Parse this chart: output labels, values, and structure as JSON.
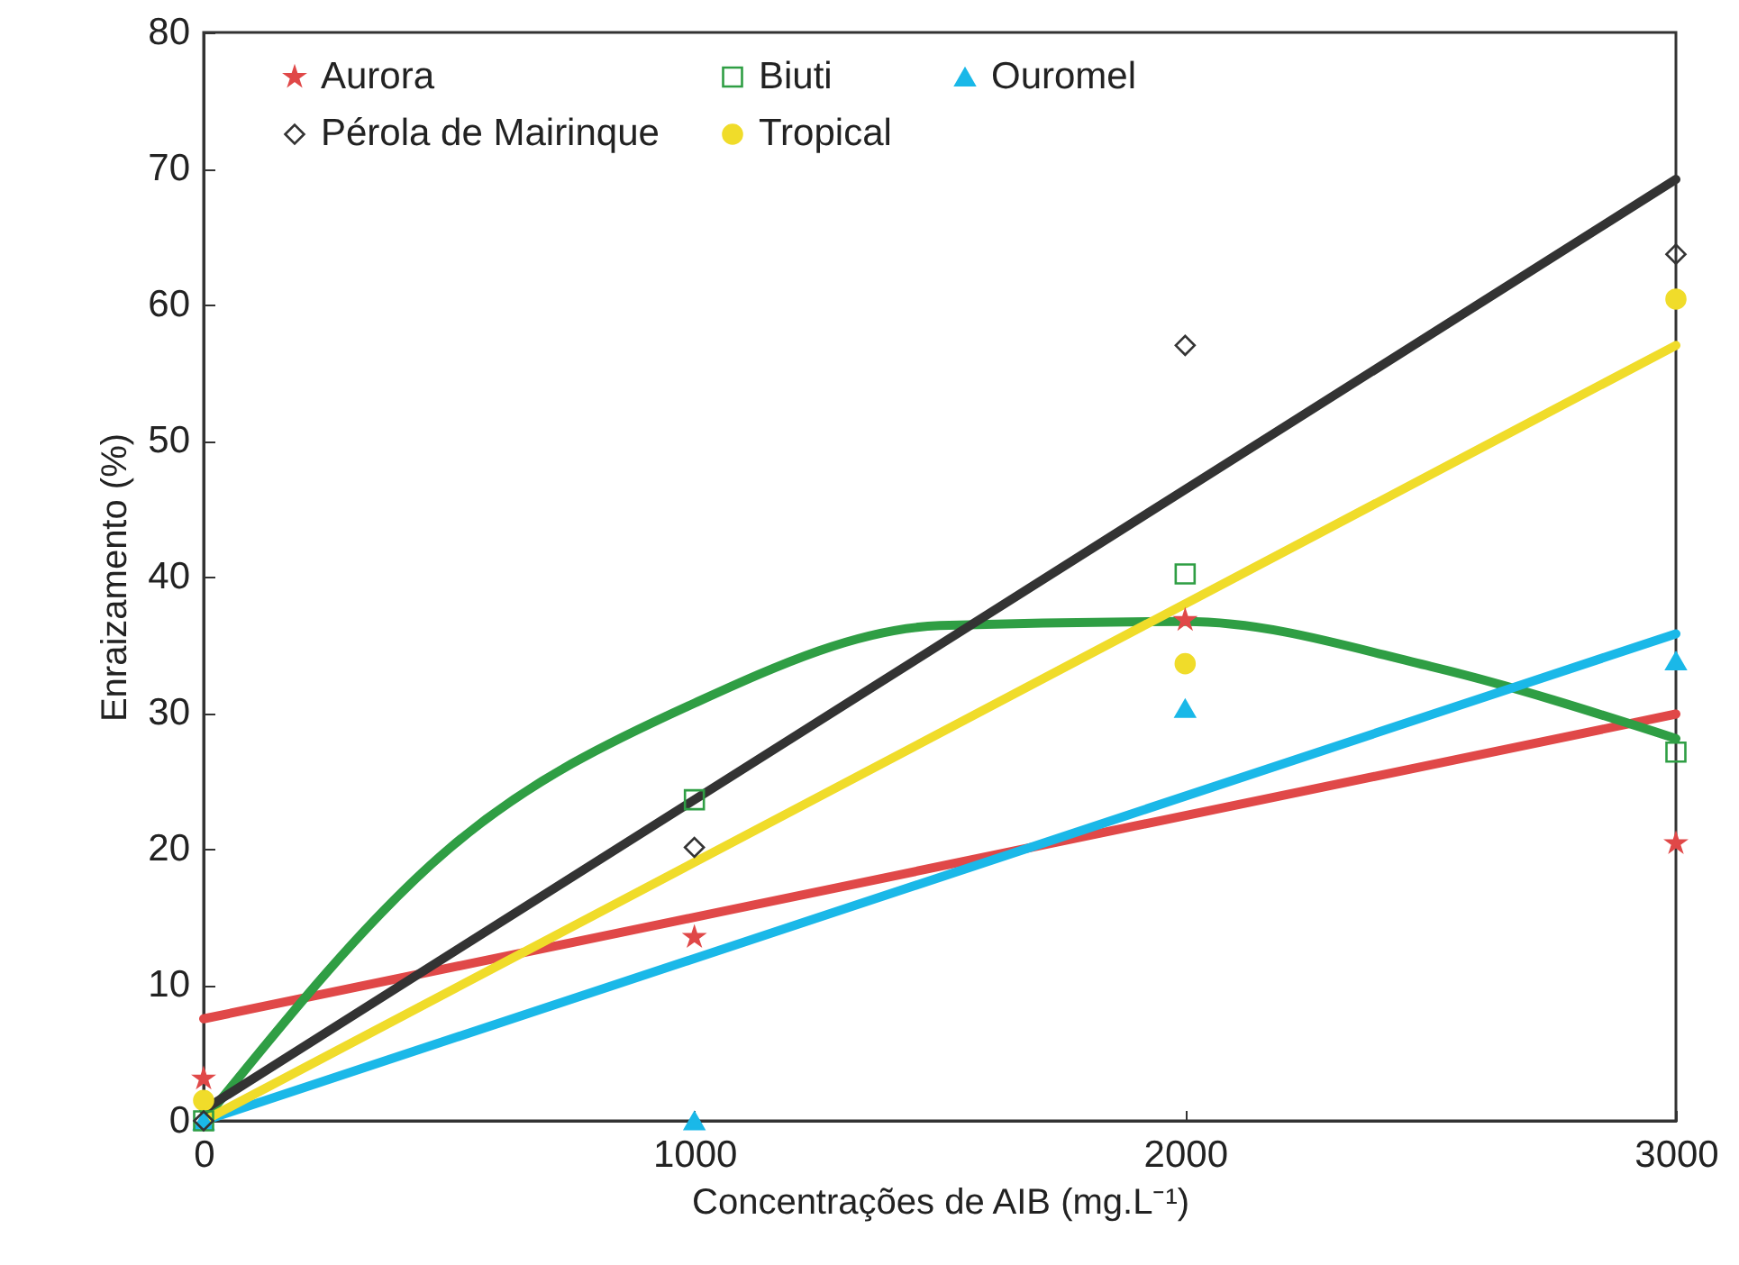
{
  "chart_data": {
    "type": "scatter",
    "xlabel": "Concentrações de AIB (mg.L⁻¹)",
    "ylabel": "Enraizamento (%)",
    "xlim": [
      0,
      3000
    ],
    "xticks": [
      0,
      1000,
      2000,
      3000
    ],
    "ylim": [
      0,
      80
    ],
    "yticks": [
      0,
      10,
      20,
      30,
      40,
      50,
      60,
      70,
      80
    ],
    "grid": false,
    "legend": "top left",
    "series": [
      {
        "name": "Aurora",
        "color": "#e04848",
        "marker": "star",
        "x": [
          0,
          1000,
          2000,
          3000
        ],
        "values": [
          3.1,
          13.5,
          36.8,
          20.4
        ]
      },
      {
        "name": "Biuti",
        "color": "#2f9e44",
        "marker": "square",
        "x": [
          0,
          1000,
          2000,
          3000
        ],
        "values": [
          0,
          23.6,
          40.2,
          27.1
        ]
      },
      {
        "name": "Ouromel",
        "color": "#1ab8e8",
        "marker": "triangle",
        "x": [
          0,
          1000,
          2000,
          3000
        ],
        "values": [
          0,
          0,
          30.3,
          33.8
        ]
      },
      {
        "name": "Pérola de Mairinque",
        "color": "#333333",
        "marker": "diamond",
        "x": [
          0,
          1000,
          2000,
          3000
        ],
        "values": [
          0,
          20.1,
          57,
          63.7
        ]
      },
      {
        "name": "Tropical",
        "color": "#f0dc2a",
        "marker": "circle",
        "x": [
          0,
          2000,
          3000
        ],
        "values": [
          1.5,
          33.6,
          60.4
        ]
      },
      {
        "type": "line",
        "color": "#e04848",
        "marker": "none",
        "x": [
          0,
          3000
        ],
        "values": [
          7.5,
          29.9
        ]
      },
      {
        "type": "line",
        "color": "#2f9e44",
        "marker": "none",
        "x": [
          0,
          500,
          1000,
          1500,
          2000,
          2500,
          3000
        ],
        "values": [
          0,
          20,
          30.7,
          36.4,
          36.7,
          33.4,
          28.1
        ]
      },
      {
        "type": "line",
        "color": "#1ab8e8",
        "marker": "none",
        "x": [
          0,
          3000
        ],
        "values": [
          0,
          35.8
        ]
      },
      {
        "type": "line",
        "color": "#333333",
        "marker": "none",
        "x": [
          0,
          3000
        ],
        "values": [
          0.8,
          69.2
        ]
      },
      {
        "type": "line",
        "color": "#f0dc2a",
        "marker": "none",
        "x": [
          0,
          3000
        ],
        "values": [
          0,
          57
        ]
      }
    ]
  }
}
